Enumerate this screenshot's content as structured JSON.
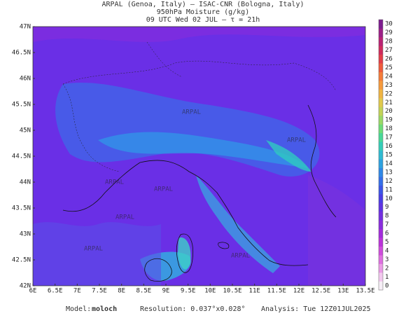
{
  "header": {
    "lines": [
      "ARPAL (Genoa, Italy)  –  ISAC-CNR (Bologna, Italy)",
      "950hPa Moisture (g/kg)",
      "09 UTC Wed 02 JUL  –  τ = 21h"
    ]
  },
  "map": {
    "lat_labels": [
      "47N",
      "46.5N",
      "46N",
      "45.5N",
      "45N",
      "44.5N",
      "44N",
      "43.5N",
      "43N",
      "42.5N",
      "42N"
    ],
    "lon_labels": [
      "6E",
      "6.5E",
      "7E",
      "7.5E",
      "8E",
      "8.5E",
      "9E",
      "9.5E",
      "10E",
      "10.5E",
      "11E",
      "11.5E",
      "12E",
      "12.5E",
      "13E",
      "13.5E"
    ],
    "watermark": "ARPAL"
  },
  "colorbar": {
    "labels": [
      0,
      1,
      2,
      3,
      4,
      5,
      6,
      7,
      8,
      9,
      10,
      11,
      12,
      13,
      14,
      15,
      16,
      17,
      18,
      19,
      20,
      21,
      22,
      23,
      24,
      25,
      26,
      27,
      28,
      29,
      30
    ]
  },
  "footer": {
    "model_label": "Model:",
    "model": "moloch",
    "resolution": "Resolution: 0.037°x0.028°",
    "analysis": "Analysis: Tue 12Z01JUL2025"
  }
}
